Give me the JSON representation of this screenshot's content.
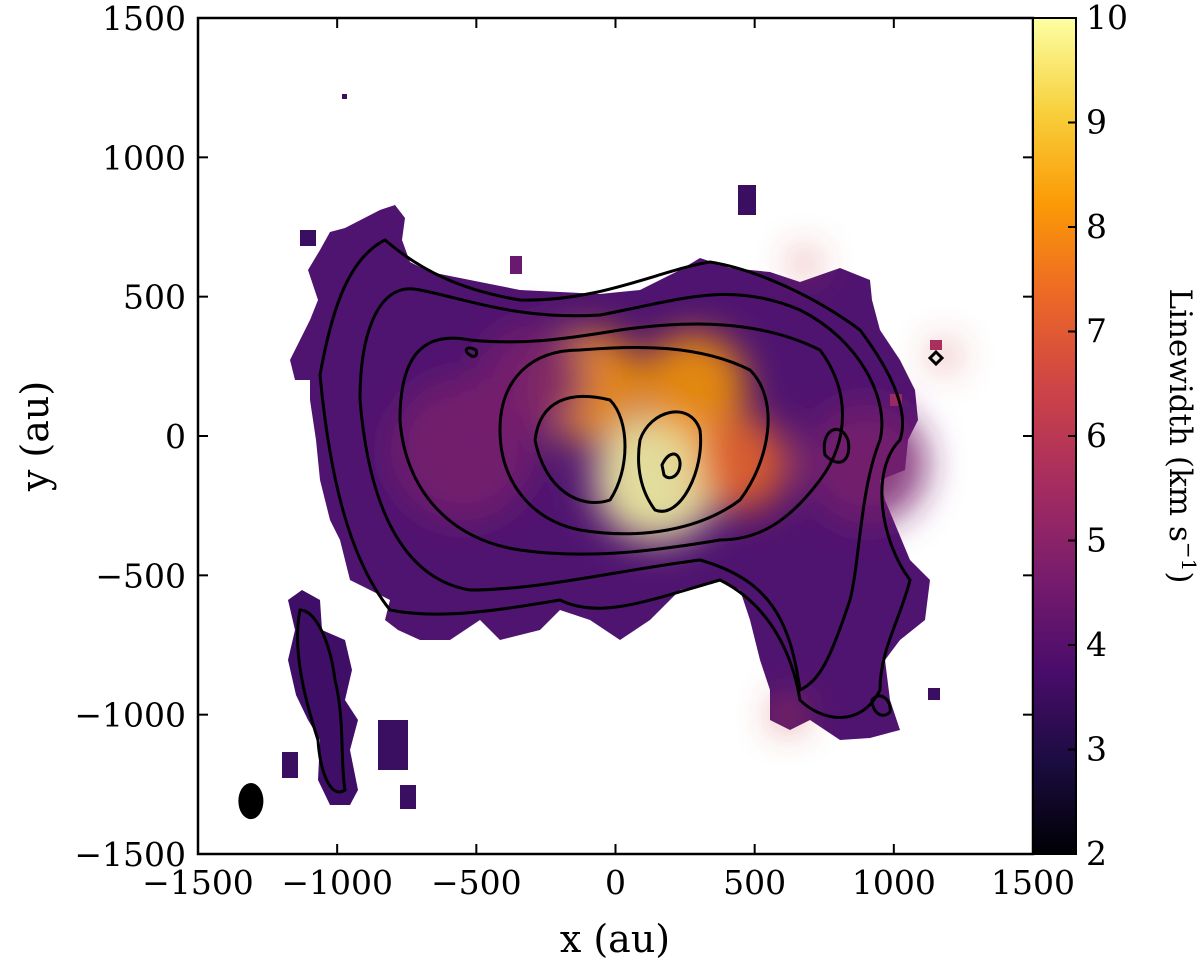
{
  "chart_data": {
    "type": "heatmap",
    "title": "",
    "xlabel": "x (au)",
    "ylabel": "y (au)",
    "xlim": [
      -1500,
      1500
    ],
    "ylim": [
      -1500,
      1500
    ],
    "xticks": [
      -1500,
      -1000,
      -500,
      0,
      500,
      1000,
      1500
    ],
    "yticks": [
      -1500,
      -1000,
      -500,
      0,
      500,
      1000,
      1500
    ],
    "xtick_labels": [
      "−1500",
      "−1000",
      "−500",
      "0",
      "500",
      "1000",
      "1500"
    ],
    "ytick_labels": [
      "−1500",
      "−1000",
      "−500",
      "0",
      "500",
      "1000",
      "1500"
    ],
    "colorbar": {
      "label": "Linewidth (km s",
      "label_superscript": "−1",
      "label_close": ")",
      "range": [
        2,
        10
      ],
      "ticks": [
        2,
        3,
        4,
        5,
        6,
        7,
        8,
        9,
        10
      ],
      "tick_labels": [
        "2",
        "3",
        "4",
        "5",
        "6",
        "7",
        "8",
        "9",
        "10"
      ],
      "colormap": "inferno",
      "colormap_stops": [
        "#000004",
        "#1b0c41",
        "#4a0c6b",
        "#781c6d",
        "#a52c60",
        "#cf4446",
        "#ed6925",
        "#fb9b06",
        "#f7d13d",
        "#fcffa4"
      ]
    },
    "emission_peaks": [
      {
        "x": 150,
        "y": -150,
        "linewidth": 9.8,
        "spread": 230
      },
      {
        "x": 280,
        "y": 180,
        "linewidth": 8.6,
        "spread": 190
      },
      {
        "x": -100,
        "y": 180,
        "linewidth": 8.2,
        "spread": 200
      },
      {
        "x": 450,
        "y": -100,
        "linewidth": 7.2,
        "spread": 170
      },
      {
        "x": 680,
        "y": 620,
        "linewidth": 6.6,
        "spread": 40
      },
      {
        "x": 620,
        "y": -1000,
        "linewidth": 6.2,
        "spread": 50
      },
      {
        "x": 1180,
        "y": 290,
        "linewidth": 6.0,
        "spread": 40
      },
      {
        "x": 900,
        "y": -100,
        "linewidth": 4.6,
        "spread": 220
      },
      {
        "x": -550,
        "y": -50,
        "linewidth": 4.3,
        "spread": 260
      },
      {
        "x": -300,
        "y": 200,
        "linewidth": 5.0,
        "spread": 200
      }
    ],
    "contour_levels": 6,
    "beam": {
      "x": -1310,
      "y": -1310,
      "major_au": 130,
      "minor_au": 90,
      "color": "#000000"
    },
    "grid": false
  }
}
